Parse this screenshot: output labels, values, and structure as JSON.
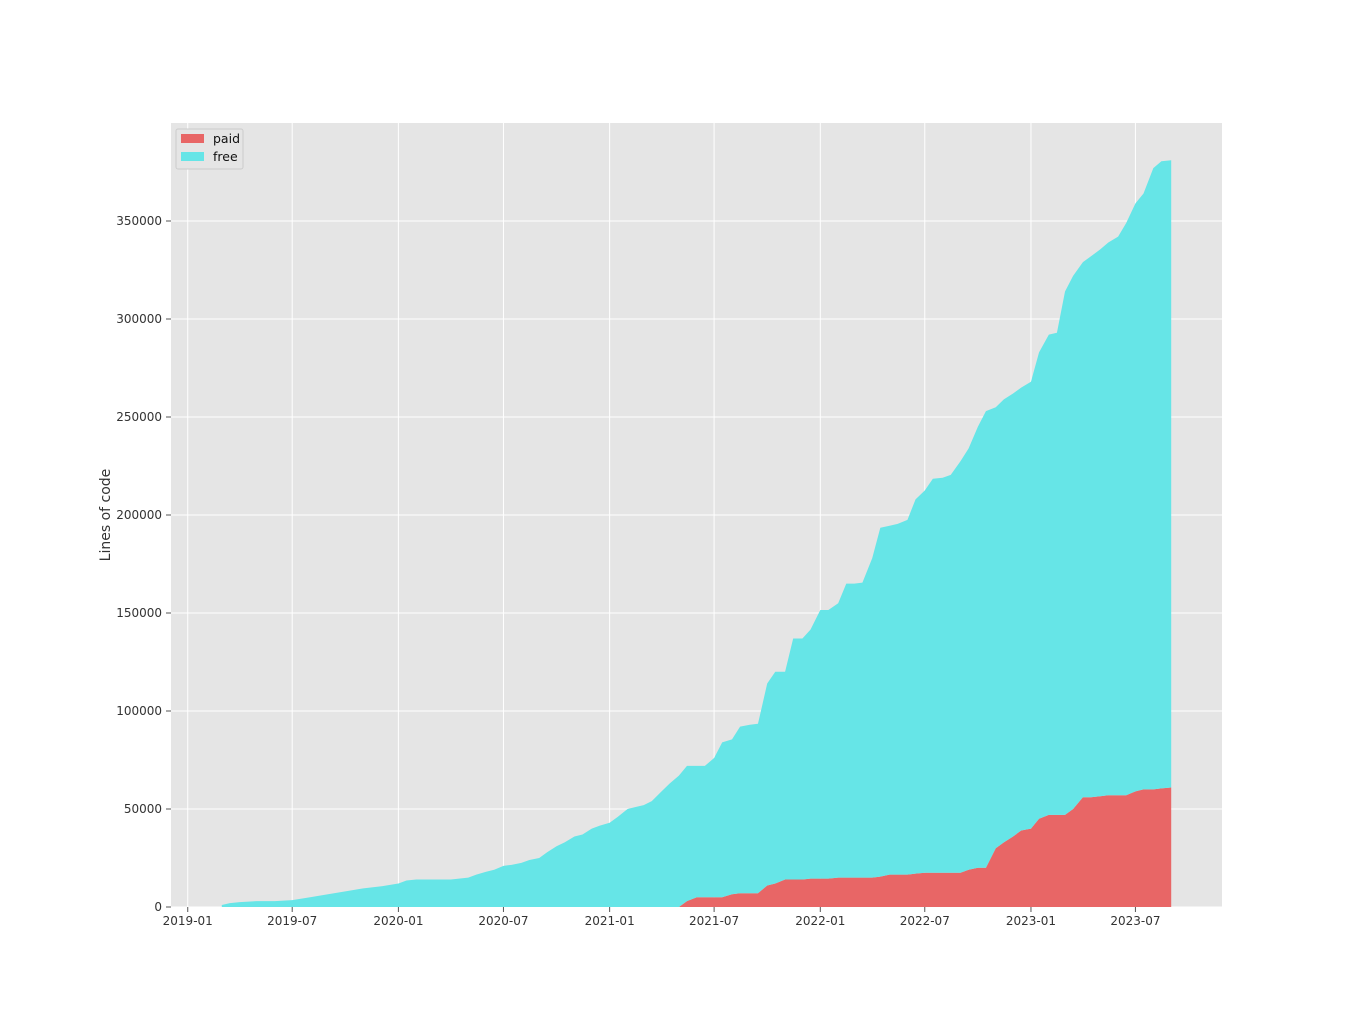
{
  "chart_data": {
    "type": "area",
    "stacked": true,
    "ylabel": "Lines of code",
    "xlabel": "",
    "ylim": [
      0,
      400000
    ],
    "xlim": [
      "2018-12-03",
      "2023-11-28"
    ],
    "grid": true,
    "legend_position": "top-left",
    "x_ticks": [
      "2019-01",
      "2019-07",
      "2020-01",
      "2020-07",
      "2021-01",
      "2021-07",
      "2022-01",
      "2022-07",
      "2023-01",
      "2023-07"
    ],
    "y_ticks": [
      0,
      50000,
      100000,
      150000,
      200000,
      250000,
      300000,
      350000
    ],
    "x": [
      "2019-03-01",
      "2019-03-15",
      "2019-04-01",
      "2019-05-01",
      "2019-06-01",
      "2019-07-01",
      "2019-08-01",
      "2019-09-01",
      "2019-10-01",
      "2019-11-01",
      "2019-12-01",
      "2020-01-01",
      "2020-01-15",
      "2020-02-01",
      "2020-03-01",
      "2020-04-01",
      "2020-04-15",
      "2020-05-01",
      "2020-05-15",
      "2020-06-01",
      "2020-06-15",
      "2020-07-01",
      "2020-07-15",
      "2020-08-01",
      "2020-08-15",
      "2020-09-01",
      "2020-09-15",
      "2020-10-01",
      "2020-10-15",
      "2020-11-01",
      "2020-11-15",
      "2020-12-01",
      "2020-12-15",
      "2021-01-01",
      "2021-01-15",
      "2021-02-01",
      "2021-02-15",
      "2021-03-01",
      "2021-03-15",
      "2021-04-01",
      "2021-04-15",
      "2021-05-01",
      "2021-05-15",
      "2021-06-01",
      "2021-06-15",
      "2021-07-01",
      "2021-07-15",
      "2021-08-01",
      "2021-08-15",
      "2021-09-01",
      "2021-09-15",
      "2021-10-01",
      "2021-10-15",
      "2021-11-01",
      "2021-11-15",
      "2021-12-01",
      "2021-12-15",
      "2022-01-01",
      "2022-01-15",
      "2022-02-01",
      "2022-02-15",
      "2022-03-01",
      "2022-03-15",
      "2022-04-01",
      "2022-04-15",
      "2022-05-01",
      "2022-05-15",
      "2022-06-01",
      "2022-06-15",
      "2022-07-01",
      "2022-07-15",
      "2022-08-01",
      "2022-08-15",
      "2022-09-01",
      "2022-09-15",
      "2022-10-01",
      "2022-10-15",
      "2022-11-01",
      "2022-11-15",
      "2022-12-01",
      "2022-12-15",
      "2023-01-01",
      "2023-01-15",
      "2023-02-01",
      "2023-02-15",
      "2023-03-01",
      "2023-03-15",
      "2023-04-01",
      "2023-04-15",
      "2023-05-01",
      "2023-05-15",
      "2023-06-01",
      "2023-06-15",
      "2023-07-01",
      "2023-07-15",
      "2023-08-01",
      "2023-08-15",
      "2023-09-01"
    ],
    "series": [
      {
        "name": "paid",
        "color": "#e86666",
        "values": [
          0,
          0,
          0,
          0,
          0,
          0,
          0,
          0,
          0,
          0,
          0,
          0,
          0,
          0,
          0,
          0,
          0,
          0,
          0,
          0,
          0,
          0,
          0,
          0,
          0,
          0,
          0,
          0,
          0,
          0,
          0,
          0,
          0,
          0,
          0,
          0,
          0,
          0,
          0,
          0,
          0,
          0,
          3000,
          5000,
          5000,
          5000,
          5000,
          6500,
          7000,
          7000,
          7000,
          11000,
          12000,
          14000,
          14000,
          14000,
          14500,
          14500,
          14500,
          15000,
          15000,
          15000,
          15000,
          15000,
          15500,
          16500,
          16500,
          16500,
          17000,
          17500,
          17500,
          17500,
          17500,
          17500,
          19000,
          20000,
          20000,
          30000,
          33000,
          36000,
          39000,
          40000,
          45000,
          47000,
          47000,
          47000,
          50000,
          56000,
          56000,
          56500,
          57000,
          57000,
          57000,
          59000,
          60000,
          60000,
          60500,
          61000
        ]
      },
      {
        "name": "free",
        "color": "#66e5e7",
        "values": [
          1000,
          2000,
          2500,
          3000,
          3000,
          3500,
          5000,
          6500,
          8000,
          9500,
          10500,
          12000,
          13500,
          14000,
          14000,
          14000,
          14500,
          15000,
          16500,
          18000,
          19000,
          21000,
          21500,
          22500,
          24000,
          25000,
          28000,
          31000,
          33000,
          36000,
          37000,
          40000,
          41500,
          43000,
          46000,
          50000,
          51000,
          52000,
          54000,
          59000,
          63000,
          67000,
          69000,
          67000,
          67000,
          71000,
          79000,
          79000,
          85000,
          86000,
          86500,
          103000,
          108000,
          106000,
          123000,
          123000,
          127000,
          137000,
          137000,
          140000,
          150000,
          150000,
          150500,
          163000,
          178000,
          178000,
          179000,
          181000,
          191000,
          195000,
          201000,
          201500,
          203000,
          210000,
          215000,
          225000,
          233000,
          225000,
          226000,
          226000,
          226000,
          228000,
          238000,
          245000,
          246000,
          267000,
          272000,
          273000,
          276000,
          279000,
          282000,
          285000,
          292000,
          300000,
          304000,
          317000,
          320000,
          320000
        ]
      }
    ]
  }
}
